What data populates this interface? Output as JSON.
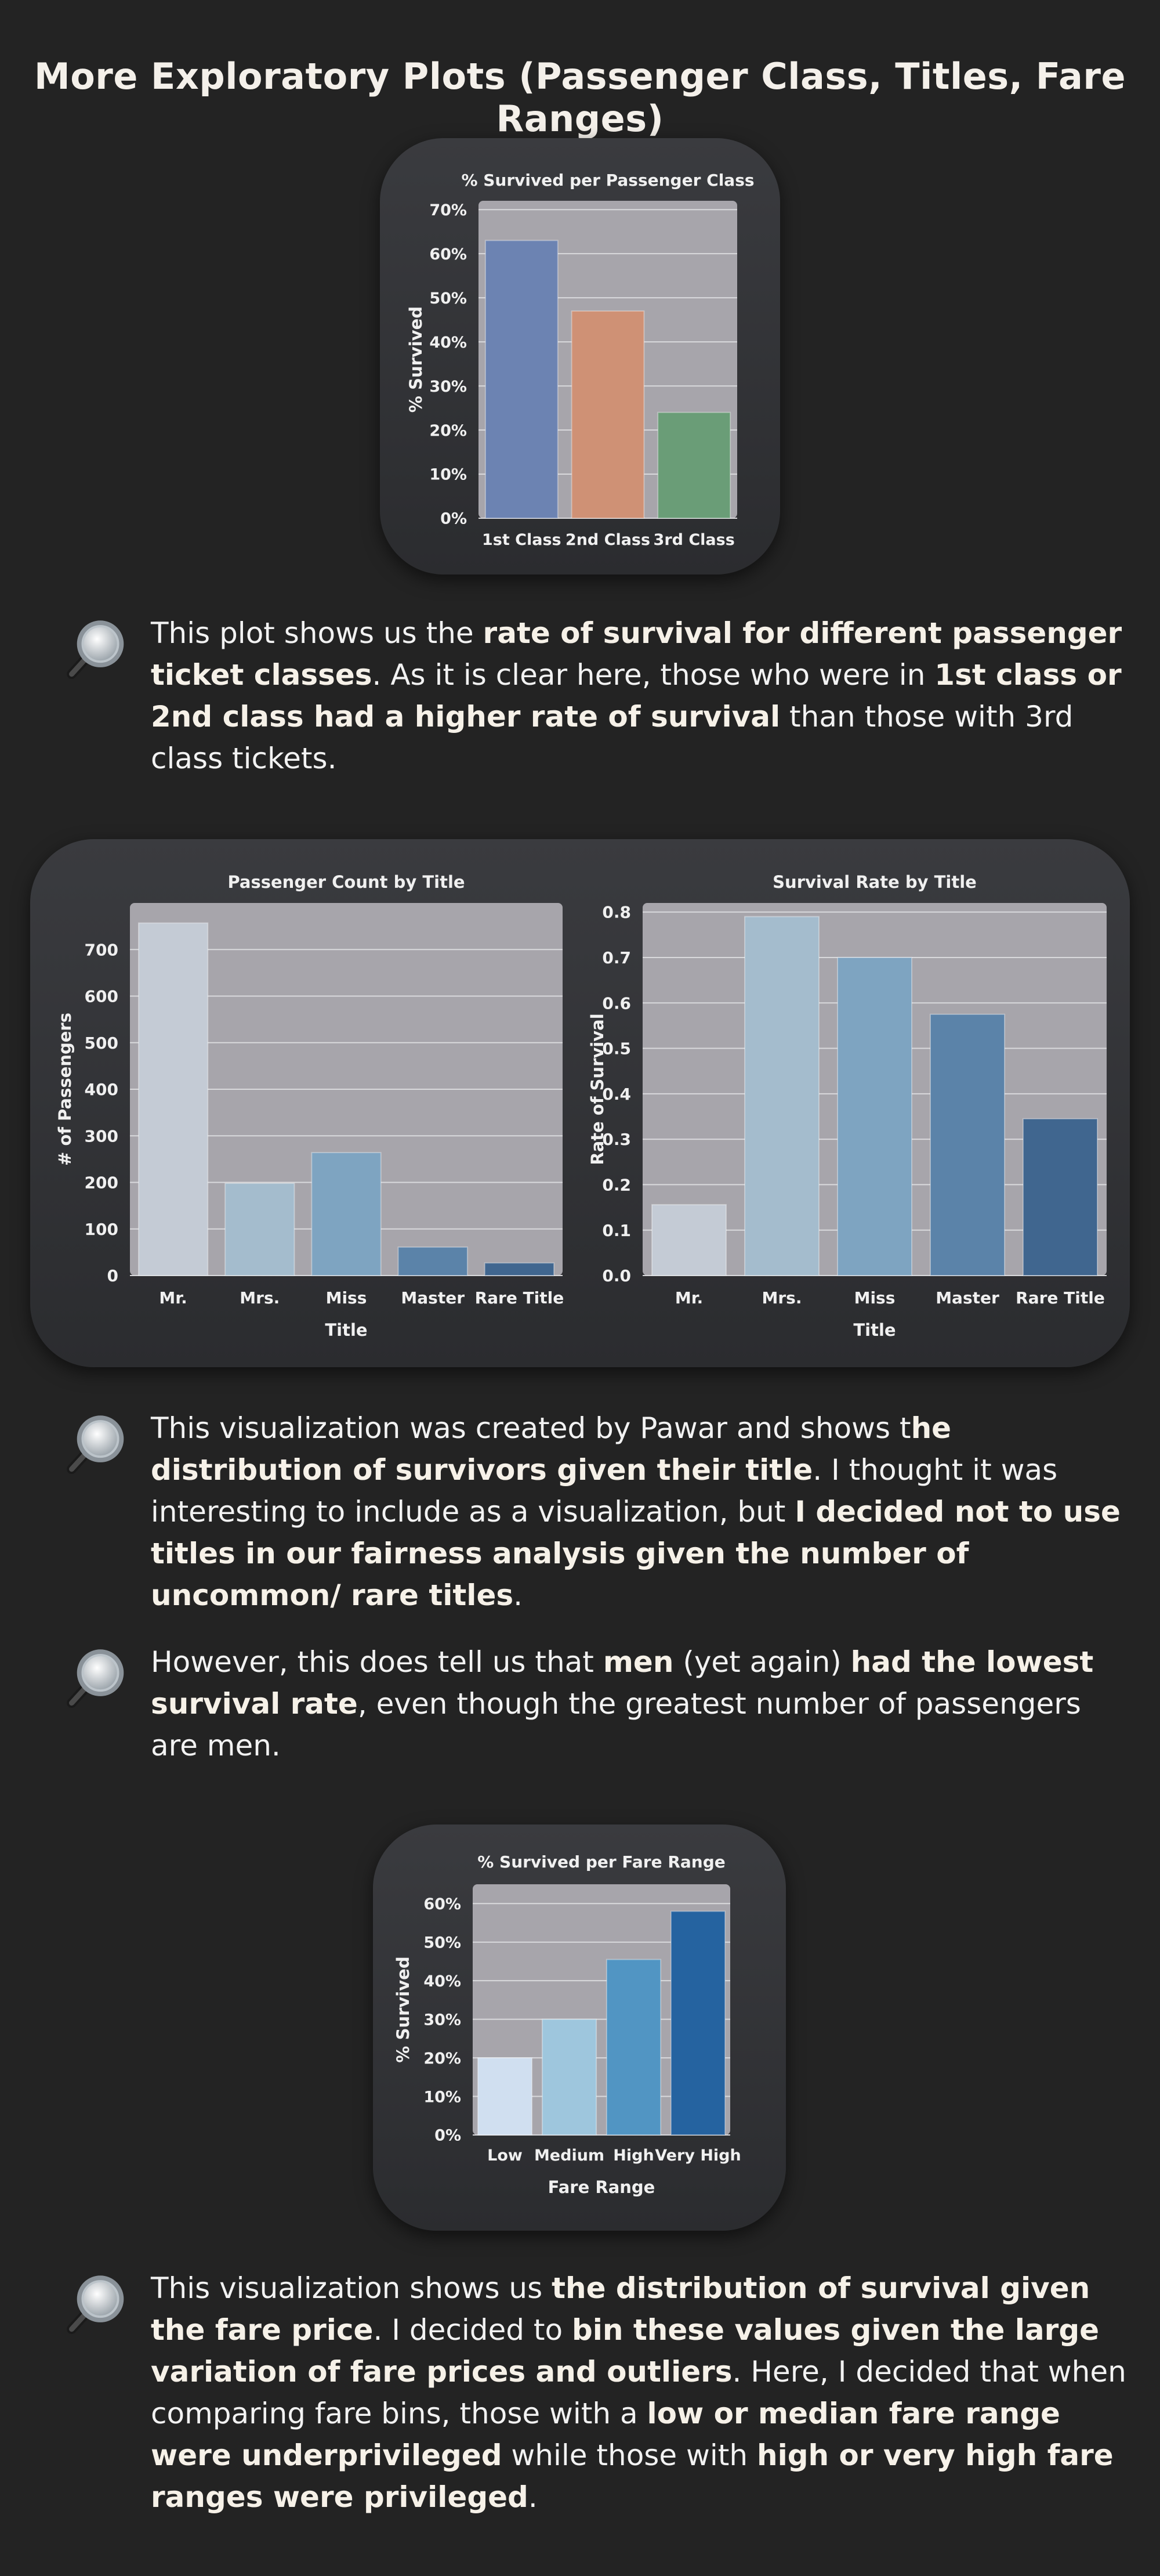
{
  "page": {
    "title": "More Exploratory Plots (Passenger Class, Titles, Fare Ranges)"
  },
  "colors": {
    "plot_bg": "#a7a5ab",
    "grid": "#d9d9dc",
    "page_bg": "#232323"
  },
  "chart_data": [
    {
      "id": "class",
      "type": "bar",
      "title": "% Survived per Passenger Class",
      "xlabel": "",
      "ylabel": "% Survived",
      "categories": [
        "1st Class",
        "2nd Class",
        "3rd Class"
      ],
      "values": [
        63,
        47,
        24
      ],
      "colors": [
        "#6c83b2",
        "#cf9175",
        "#6a9d77"
      ],
      "ylim": [
        0,
        72
      ],
      "yticks": [
        0,
        10,
        20,
        30,
        40,
        50,
        60,
        70
      ],
      "ytick_labels": [
        "0%",
        "10%",
        "20%",
        "30%",
        "40%",
        "50%",
        "60%",
        "70%"
      ],
      "grid": true
    },
    {
      "id": "count",
      "type": "bar",
      "title": "Passenger Count by Title",
      "xlabel": "Title",
      "ylabel": "# of Passengers",
      "categories": [
        "Mr.",
        "Mrs.",
        "Miss",
        "Master",
        "Rare Title"
      ],
      "values": [
        757,
        198,
        264,
        61,
        27
      ],
      "colors": [
        "#c4cbd5",
        "#a4bccd",
        "#7ea4c1",
        "#5b83a9",
        "#40668f"
      ],
      "ylim": [
        0,
        800
      ],
      "yticks": [
        0,
        100,
        200,
        300,
        400,
        500,
        600,
        700
      ],
      "ytick_labels": [
        "0",
        "100",
        "200",
        "300",
        "400",
        "500",
        "600",
        "700"
      ],
      "grid": true
    },
    {
      "id": "rate",
      "type": "bar",
      "title": "Survival Rate by Title",
      "xlabel": "Title",
      "ylabel": "Rate of Survival",
      "categories": [
        "Mr.",
        "Mrs.",
        "Miss",
        "Master",
        "Rare Title"
      ],
      "values": [
        0.156,
        0.79,
        0.7,
        0.575,
        0.345
      ],
      "colors": [
        "#c4cbd5",
        "#a4bccd",
        "#7ea4c1",
        "#5b83a9",
        "#40668f"
      ],
      "ylim": [
        0,
        0.82
      ],
      "yticks": [
        0.0,
        0.1,
        0.2,
        0.3,
        0.4,
        0.5,
        0.6,
        0.7,
        0.8
      ],
      "ytick_labels": [
        "0.0",
        "0.1",
        "0.2",
        "0.3",
        "0.4",
        "0.5",
        "0.6",
        "0.7",
        "0.8"
      ],
      "grid": true
    },
    {
      "id": "fare",
      "type": "bar",
      "title": "% Survived per Fare Range",
      "xlabel": "Fare Range",
      "ylabel": "% Survived",
      "categories": [
        "Low",
        "Medium",
        "High",
        "Very High"
      ],
      "values": [
        20,
        30,
        45.5,
        58
      ],
      "colors": [
        "#d0dff0",
        "#9ec6dd",
        "#5195c3",
        "#2563a0"
      ],
      "ylim": [
        0,
        65
      ],
      "yticks": [
        0,
        10,
        20,
        30,
        40,
        50,
        60
      ],
      "ytick_labels": [
        "0%",
        "10%",
        "20%",
        "30%",
        "40%",
        "50%",
        "60%"
      ],
      "grid": true
    }
  ],
  "notes": [
    {
      "icon": "magnifying-glass-icon",
      "segments": [
        {
          "t": "This plot shows us the ",
          "b": false
        },
        {
          "t": "rate of survival for different passenger ticket classes",
          "b": true
        },
        {
          "t": ". As it is clear here, those who were in ",
          "b": false
        },
        {
          "t": "1st class or 2nd class had a higher rate of survival",
          "b": true
        },
        {
          "t": " than those with 3rd class tickets.",
          "b": false
        }
      ]
    },
    {
      "icon": "magnifying-glass-icon",
      "segments": [
        {
          "t": "This visualization was created by Pawar and shows t",
          "b": false
        },
        {
          "t": "he distribution of survivors given their title",
          "b": true
        },
        {
          "t": ". I thought it was interesting to include as a visualization, but ",
          "b": false
        },
        {
          "t": "I decided not to use titles in our fairness analysis given the number of uncommon/ rare titles",
          "b": true
        },
        {
          "t": ".",
          "b": false
        }
      ]
    },
    {
      "icon": "magnifying-glass-icon",
      "segments": [
        {
          "t": "However, this does tell us that ",
          "b": false
        },
        {
          "t": "men",
          "b": true
        },
        {
          "t": " (yet again) ",
          "b": false
        },
        {
          "t": "had the lowest survival rate",
          "b": true
        },
        {
          "t": ", even though the greatest number of passengers are men.",
          "b": false
        }
      ]
    },
    {
      "icon": "magnifying-glass-icon",
      "segments": [
        {
          "t": "This visualization shows us ",
          "b": false
        },
        {
          "t": "the distribution of survival given the fare price",
          "b": true
        },
        {
          "t": ". I decided to ",
          "b": false
        },
        {
          "t": "bin these values given the large variation of fare prices and outliers",
          "b": true
        },
        {
          "t": ". Here, I decided that when comparing fare bins, those with a ",
          "b": false
        },
        {
          "t": "low or median fare range were underprivileged",
          "b": true
        },
        {
          "t": " while those with ",
          "b": false
        },
        {
          "t": "high or very high fare ranges were privileged",
          "b": true
        },
        {
          "t": ".",
          "b": false
        }
      ]
    }
  ]
}
